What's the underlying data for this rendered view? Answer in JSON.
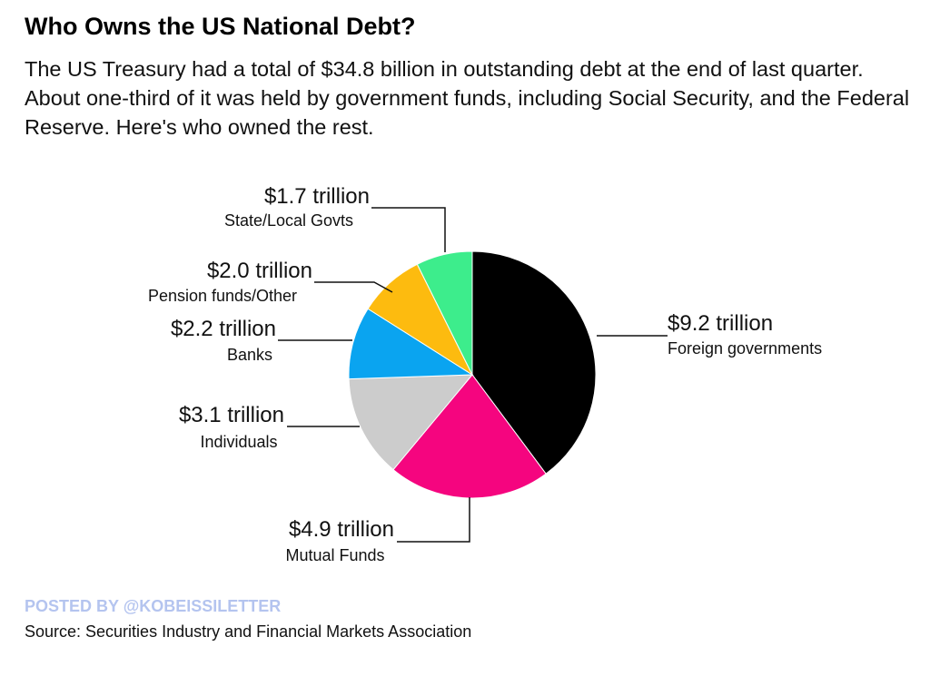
{
  "header": {
    "title": "Who Owns the US National Debt?",
    "subtitle": "The US Treasury had a total of $34.8 billion in outstanding debt at the end of last quarter. About one-third of it was held by government funds, including Social Security, and the Federal Reserve. Here's who owned the rest."
  },
  "footer": {
    "posted_by": "POSTED BY @KOBEISSILETTER",
    "source": "Source: Securities Industry and Financial Markets Association"
  },
  "chart_data": {
    "type": "pie",
    "unit": "trillion USD",
    "slices": [
      {
        "label": "Foreign governments",
        "value": 9.2,
        "value_label": "$9.2 trillion",
        "color": "#000000"
      },
      {
        "label": "Mutual Funds",
        "value": 4.9,
        "value_label": "$4.9 trillion",
        "color": "#f5057f"
      },
      {
        "label": "Individuals",
        "value": 3.1,
        "value_label": "$3.1 trillion",
        "color": "#cccccc"
      },
      {
        "label": "Banks",
        "value": 2.2,
        "value_label": "$2.2 trillion",
        "color": "#0aa4f0"
      },
      {
        "label": "Pension funds/Other",
        "value": 2.0,
        "value_label": "$2.0 trillion",
        "color": "#fdbb0f"
      },
      {
        "label": "State/Local Govts",
        "value": 1.7,
        "value_label": "$1.7 trillion",
        "color": "#3ded8c"
      }
    ]
  }
}
